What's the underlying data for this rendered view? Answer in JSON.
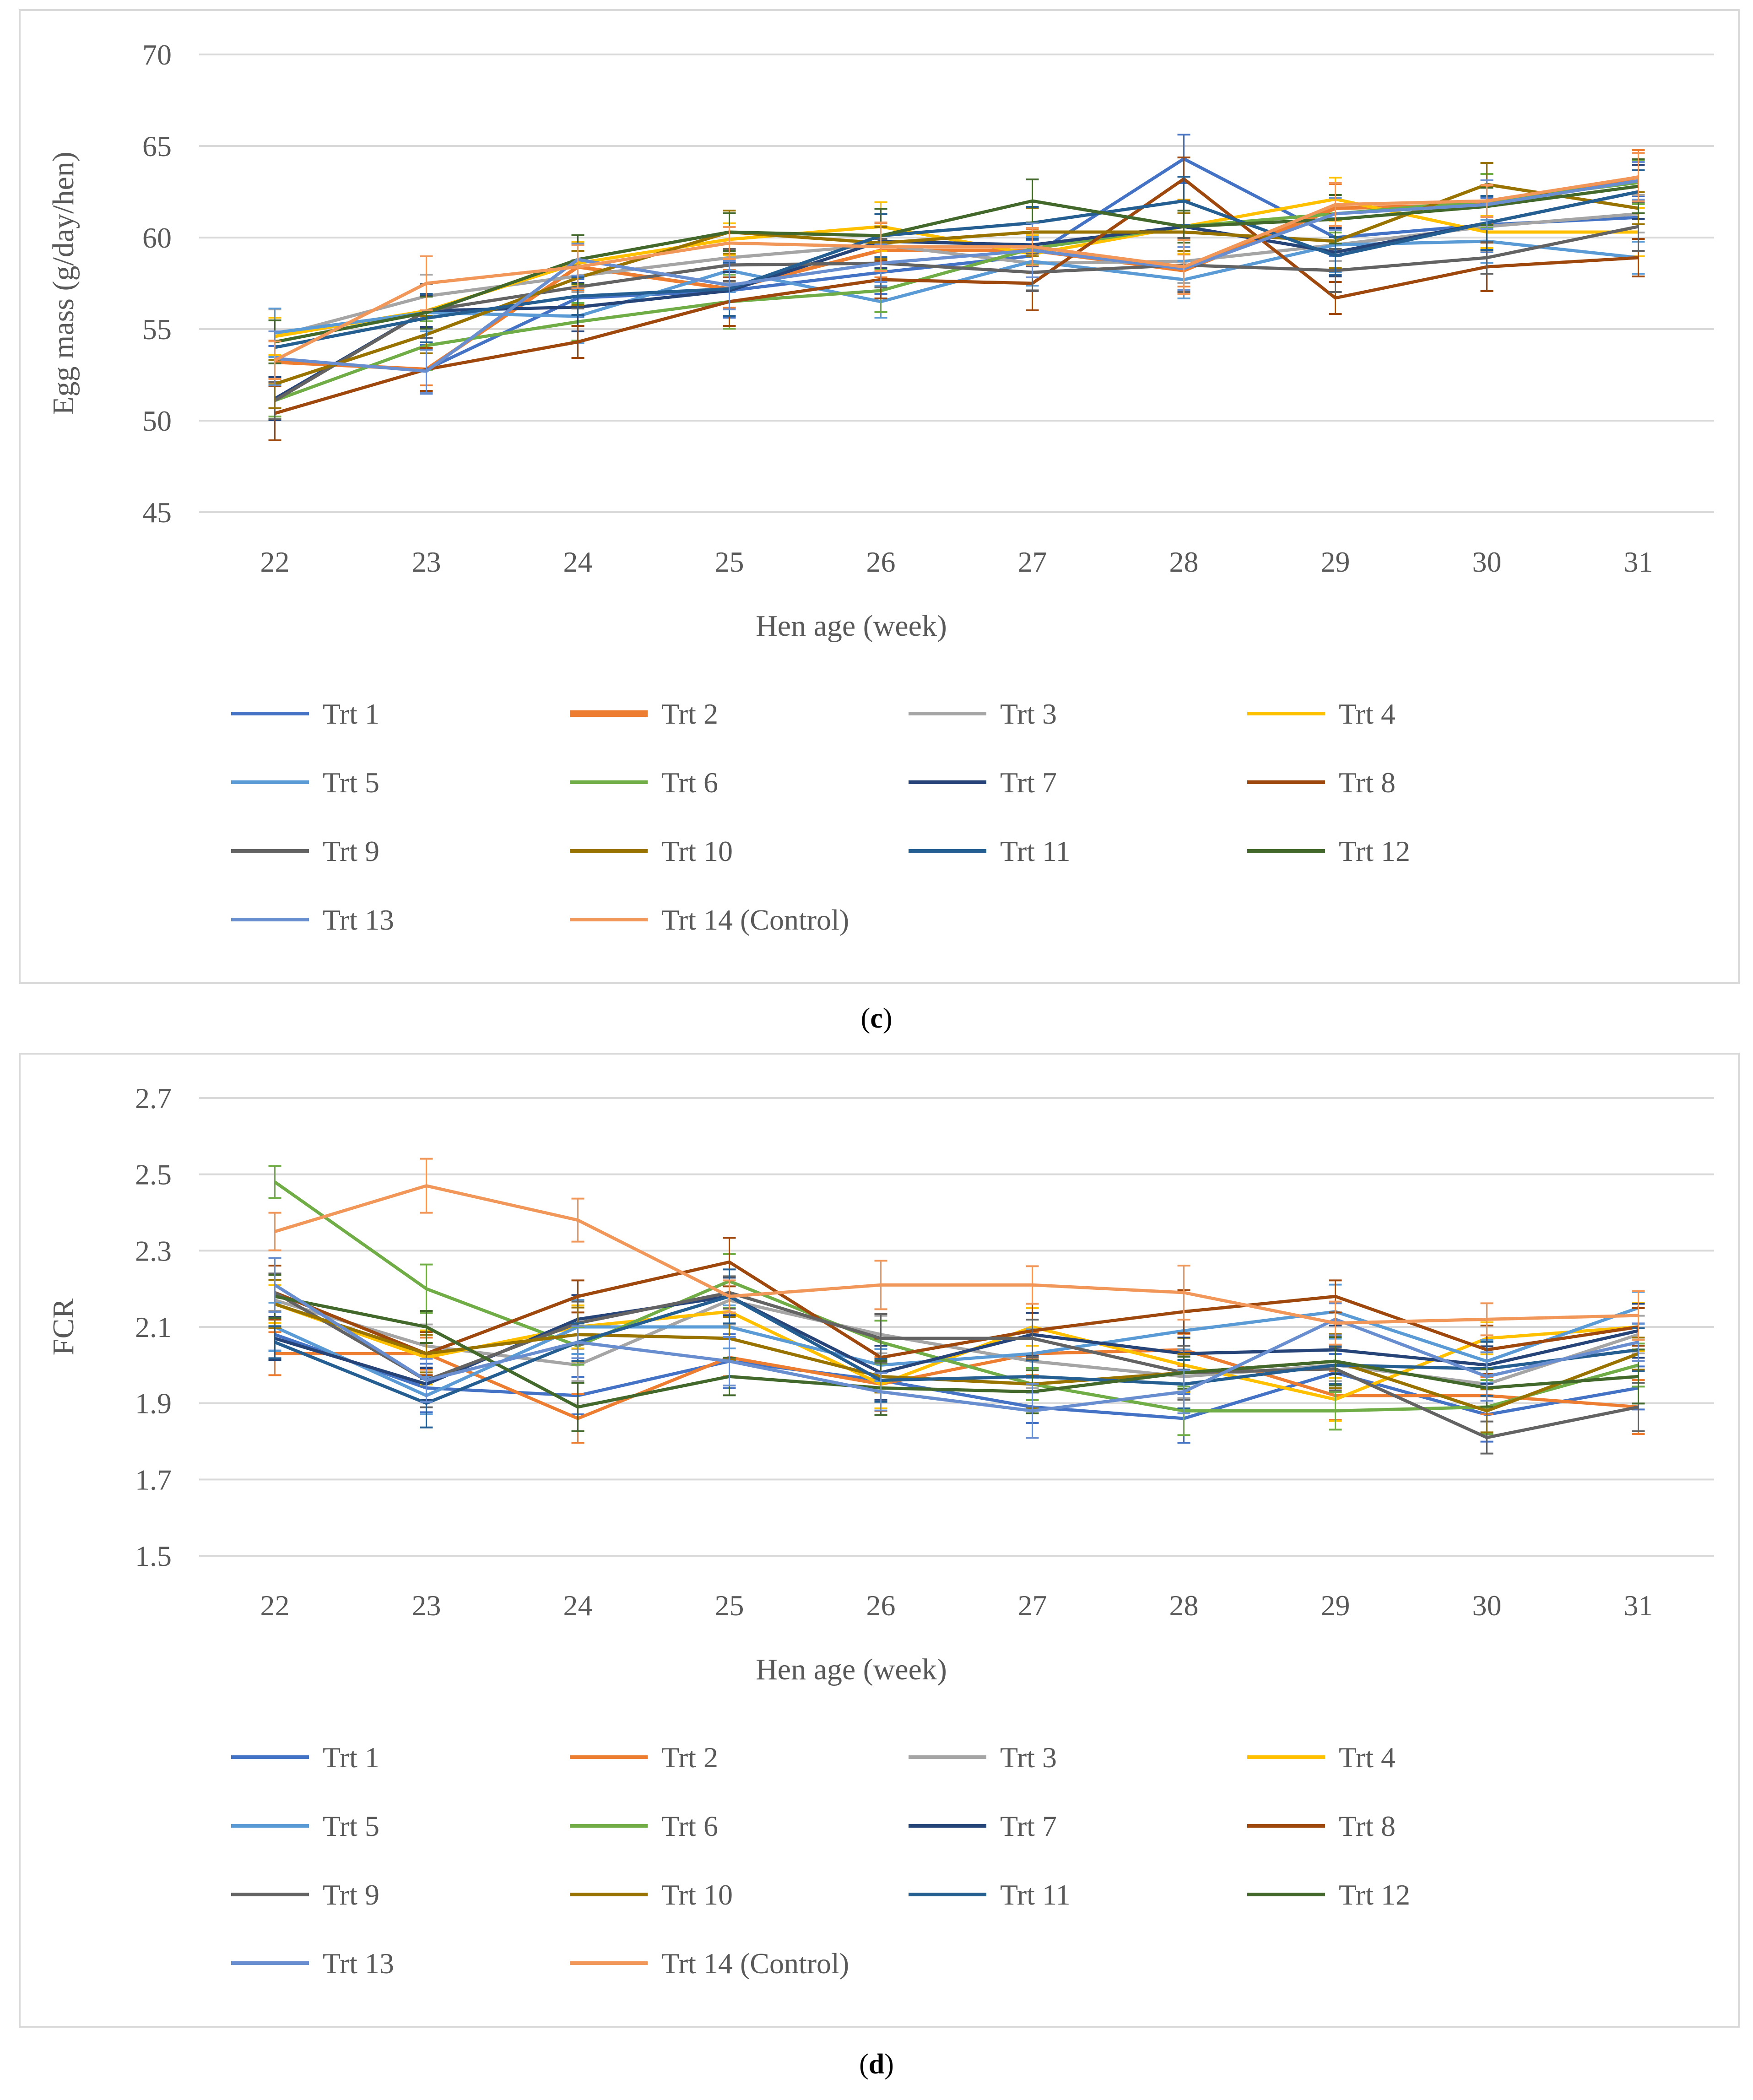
{
  "colors": {
    "Trt 1": "#4472c4",
    "Trt 2": "#ed7d31",
    "Trt 3": "#a5a5a5",
    "Trt 4": "#ffc000",
    "Trt 5": "#5b9bd5",
    "Trt 6": "#70ad47",
    "Trt 7": "#264478",
    "Trt 8": "#9e480e",
    "Trt 9": "#636363",
    "Trt 10": "#997300",
    "Trt 11": "#255e91",
    "Trt 12": "#43682b",
    "Trt 13": "#698ed0",
    "Trt 14 (Control)": "#f1975a"
  },
  "captions": {
    "c": "c",
    "d": "d"
  },
  "chart_data": [
    {
      "type": "line",
      "panel": "c",
      "ylabel": "Egg mass (g/day/hen)",
      "xlabel": "Hen age (week)",
      "ylim": [
        45,
        70
      ],
      "yticks": [
        "45",
        "50",
        "55",
        "60",
        "65",
        "70"
      ],
      "categories": [
        "22",
        "23",
        "24",
        "25",
        "26",
        "27",
        "28",
        "29",
        "30",
        "31"
      ],
      "legend_position": "bottom",
      "series": [
        {
          "name": "Trt 1",
          "values": [
            53.2,
            52.8,
            56.7,
            57.1,
            58.1,
            59.0,
            64.3,
            60.0,
            60.7,
            61.1
          ]
        },
        {
          "name": "Trt 2",
          "values": [
            53.2,
            52.8,
            58.4,
            57.2,
            59.3,
            59.3,
            58.2,
            61.6,
            61.8,
            63.3
          ]
        },
        {
          "name": "Trt 3",
          "values": [
            54.6,
            56.8,
            57.9,
            58.9,
            59.6,
            58.6,
            58.7,
            59.6,
            60.6,
            61.3
          ]
        },
        {
          "name": "Trt 4",
          "values": [
            54.6,
            56.0,
            58.6,
            59.9,
            60.6,
            59.1,
            60.6,
            62.1,
            60.3,
            60.3
          ]
        },
        {
          "name": "Trt 5",
          "values": [
            54.8,
            55.9,
            55.7,
            58.2,
            56.5,
            58.7,
            57.7,
            59.6,
            59.8,
            58.9
          ]
        },
        {
          "name": "Trt 6",
          "values": [
            51.1,
            54.1,
            55.4,
            56.5,
            57.1,
            59.4,
            60.6,
            61.3,
            62.0,
            63.0
          ]
        },
        {
          "name": "Trt 7",
          "values": [
            51.2,
            56.0,
            56.2,
            57.1,
            59.8,
            59.6,
            60.6,
            59.2,
            60.8,
            62.5
          ]
        },
        {
          "name": "Trt 8",
          "values": [
            50.4,
            52.8,
            54.3,
            56.5,
            57.7,
            57.5,
            63.2,
            56.7,
            58.4,
            58.9
          ]
        },
        {
          "name": "Trt 9",
          "values": [
            51.1,
            56.0,
            57.3,
            58.5,
            58.6,
            58.1,
            58.5,
            58.2,
            58.9,
            60.6
          ]
        },
        {
          "name": "Trt 10",
          "values": [
            52.0,
            54.7,
            57.8,
            60.3,
            59.7,
            60.3,
            60.3,
            59.8,
            62.9,
            61.6
          ]
        },
        {
          "name": "Trt 11",
          "values": [
            54.0,
            55.6,
            56.8,
            57.2,
            60.1,
            60.8,
            62.0,
            59.0,
            60.8,
            62.5
          ]
        },
        {
          "name": "Trt 12",
          "values": [
            54.3,
            55.9,
            58.8,
            60.3,
            60.1,
            62.0,
            60.6,
            61.0,
            61.7,
            62.8
          ]
        },
        {
          "name": "Trt 13",
          "values": [
            53.4,
            52.7,
            58.8,
            57.4,
            58.6,
            59.3,
            58.3,
            61.3,
            61.8,
            63.1
          ]
        },
        {
          "name": "Trt 14 (Control)",
          "values": [
            53.3,
            57.5,
            58.4,
            59.7,
            59.5,
            59.5,
            58.4,
            61.8,
            62.0,
            63.3
          ]
        }
      ]
    },
    {
      "type": "line",
      "panel": "d",
      "ylabel": "FCR",
      "xlabel": "Hen age (week)",
      "ylim": [
        1.5,
        2.7
      ],
      "yticks": [
        "1.5",
        "1.7",
        "1.9",
        "2.1",
        "2.3",
        "2.5",
        "2.7"
      ],
      "categories": [
        "22",
        "23",
        "24",
        "25",
        "26",
        "27",
        "28",
        "29",
        "30",
        "31"
      ],
      "legend_position": "bottom",
      "series": [
        {
          "name": "Trt 1",
          "values": [
            2.08,
            1.94,
            1.92,
            2.01,
            1.96,
            1.89,
            1.86,
            1.98,
            1.87,
            1.94
          ]
        },
        {
          "name": "Trt 2",
          "values": [
            2.03,
            2.03,
            1.86,
            2.02,
            1.95,
            2.03,
            2.04,
            1.92,
            1.92,
            1.89
          ]
        },
        {
          "name": "Trt 3",
          "values": [
            2.17,
            2.05,
            2.0,
            2.17,
            2.08,
            2.01,
            1.97,
            2.0,
            1.95,
            2.08
          ]
        },
        {
          "name": "Trt 4",
          "values": [
            2.16,
            2.02,
            2.1,
            2.14,
            1.95,
            2.1,
            2.0,
            1.91,
            2.07,
            2.1
          ]
        },
        {
          "name": "Trt 5",
          "values": [
            2.1,
            1.92,
            2.1,
            2.1,
            2.0,
            2.03,
            2.09,
            2.14,
            2.01,
            2.15
          ]
        },
        {
          "name": "Trt 6",
          "values": [
            2.48,
            2.2,
            2.05,
            2.22,
            2.06,
            1.95,
            1.88,
            1.88,
            1.89,
            2.0
          ]
        },
        {
          "name": "Trt 7",
          "values": [
            2.07,
            1.95,
            2.12,
            2.18,
            1.98,
            2.08,
            2.03,
            2.04,
            2.0,
            2.09
          ]
        },
        {
          "name": "Trt 8",
          "values": [
            2.19,
            2.03,
            2.18,
            2.27,
            2.02,
            2.09,
            2.14,
            2.18,
            2.04,
            2.1
          ]
        },
        {
          "name": "Trt 9",
          "values": [
            2.19,
            1.96,
            2.11,
            2.19,
            2.07,
            2.07,
            1.98,
            1.99,
            1.81,
            1.89
          ]
        },
        {
          "name": "Trt 10",
          "values": [
            2.16,
            2.03,
            2.08,
            2.07,
            1.97,
            1.95,
            1.98,
            2.01,
            1.88,
            2.03
          ]
        },
        {
          "name": "Trt 11",
          "values": [
            2.06,
            1.9,
            2.06,
            2.18,
            1.96,
            1.97,
            1.95,
            2.0,
            1.99,
            2.04
          ]
        },
        {
          "name": "Trt 12",
          "values": [
            2.18,
            2.1,
            1.89,
            1.97,
            1.94,
            1.93,
            1.98,
            2.01,
            1.94,
            1.97
          ]
        },
        {
          "name": "Trt 13",
          "values": [
            2.21,
            1.96,
            2.06,
            2.01,
            1.93,
            1.88,
            1.93,
            2.12,
            1.97,
            2.06
          ]
        },
        {
          "name": "Trt 14 (Control)",
          "values": [
            2.35,
            2.47,
            2.38,
            2.18,
            2.21,
            2.21,
            2.19,
            2.11,
            2.12,
            2.13
          ]
        }
      ]
    }
  ]
}
